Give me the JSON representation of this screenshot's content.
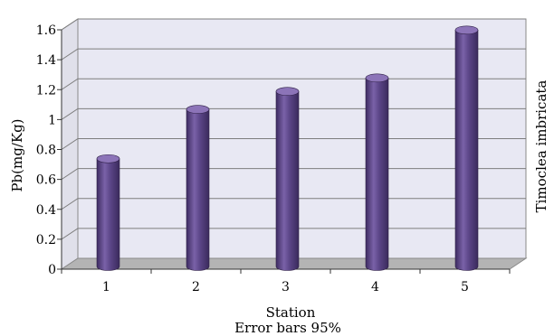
{
  "chart_data": {
    "type": "bar",
    "title": "",
    "xlabel": "Station",
    "xlabel_sub": "Error bars 95%",
    "ylabel": "Pb(mg/Kg)",
    "right_label": "Timoclea imbricata",
    "categories": [
      "1",
      "2",
      "3",
      "4",
      "5"
    ],
    "values": [
      0.72,
      1.05,
      1.17,
      1.26,
      1.58
    ],
    "ylim": [
      0,
      1.6
    ],
    "yticks": [
      "0",
      "0.2",
      "0.4",
      "0.6",
      "0.8",
      "1",
      "1.2",
      "1.4",
      "1.6"
    ],
    "grid": true,
    "colors": {
      "bar": "#5b4587",
      "bar_light": "#8c74b8",
      "bar_dark": "#3e2c62",
      "wall": "#e7e7f2",
      "floor": "#b6b6b6"
    }
  }
}
